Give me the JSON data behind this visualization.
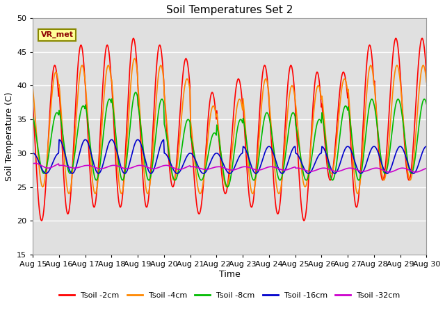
{
  "title": "Soil Temperatures Set 2",
  "xlabel": "Time",
  "ylabel": "Soil Temperature (C)",
  "ylim": [
    15,
    50
  ],
  "x_tick_labels": [
    "Aug 15",
    "Aug 16",
    "Aug 17",
    "Aug 18",
    "Aug 19",
    "Aug 20",
    "Aug 21",
    "Aug 22",
    "Aug 23",
    "Aug 24",
    "Aug 25",
    "Aug 26",
    "Aug 27",
    "Aug 28",
    "Aug 29",
    "Aug 30"
  ],
  "annotation_text": "VR_met",
  "background_color": "#ffffff",
  "plot_bg_color": "#e0e0e0",
  "grid_color": "#ffffff",
  "series": [
    {
      "label": "Tsoil -2cm",
      "color": "#ff0000",
      "linewidth": 1.2,
      "peaks": [
        43,
        46,
        46,
        47,
        46,
        44,
        39,
        41,
        43,
        43,
        42,
        42,
        46,
        47,
        47
      ],
      "valleys": [
        20,
        21,
        22,
        22,
        22,
        25,
        21,
        24,
        22,
        21,
        20,
        26,
        22,
        26,
        26
      ],
      "phase": 0.583
    },
    {
      "label": "Tsoil -4cm",
      "color": "#ff8800",
      "linewidth": 1.2,
      "peaks": [
        42,
        43,
        43,
        44,
        43,
        41,
        37,
        38,
        41,
        40,
        40,
        41,
        43,
        43,
        43
      ],
      "valleys": [
        25,
        24,
        24,
        24,
        24,
        26,
        24,
        25,
        24,
        24,
        25,
        27,
        24,
        26,
        26
      ],
      "phase": 0.625
    },
    {
      "label": "Tsoil -8cm",
      "color": "#00bb00",
      "linewidth": 1.2,
      "peaks": [
        36,
        37,
        38,
        39,
        38,
        35,
        33,
        35,
        36,
        36,
        35,
        37,
        38,
        38,
        38
      ],
      "valleys": [
        27,
        27,
        26,
        26,
        26,
        26,
        26,
        25,
        26,
        26,
        26,
        26,
        26,
        27,
        27
      ],
      "phase": 0.667
    },
    {
      "label": "Tsoil -16cm",
      "color": "#0000cc",
      "linewidth": 1.2,
      "peaks": [
        30,
        32,
        32,
        32,
        32,
        30,
        30,
        30,
        31,
        31,
        30,
        31,
        31,
        31,
        31
      ],
      "valleys": [
        27,
        27,
        27,
        27,
        27,
        27,
        27,
        27,
        27,
        27,
        27,
        27,
        27,
        27,
        27
      ],
      "phase": 0.75
    },
    {
      "label": "Tsoil -32cm",
      "color": "#cc00cc",
      "linewidth": 1.2,
      "peaks": [
        28.5,
        28.2,
        28.2,
        28.2,
        28.2,
        28.2,
        28.0,
        28.0,
        28.0,
        28.0,
        27.8,
        27.8,
        27.8,
        27.8,
        27.8
      ],
      "valleys": [
        27.8,
        27.8,
        27.7,
        27.7,
        27.7,
        27.6,
        27.6,
        27.5,
        27.5,
        27.5,
        27.3,
        27.3,
        27.3,
        27.2,
        27.2
      ],
      "phase": 0.833
    }
  ]
}
